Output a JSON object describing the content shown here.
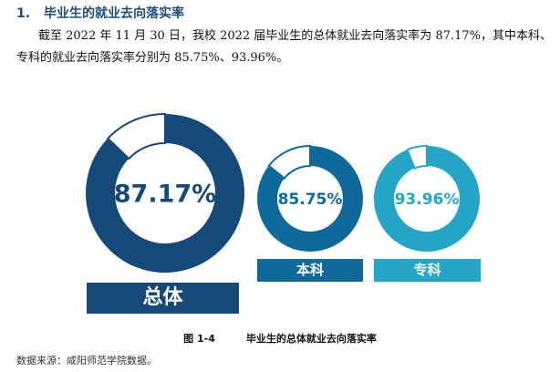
{
  "heading": {
    "number": "1.",
    "title": "毕业生的就业去向落实率"
  },
  "paragraph": "截至 2022 年 11 月 30 日，我校 2022 届毕业生的总体就业去向落实率为 87.17%，其中本科、专科的就业去向落实率分别为 85.75%、93.96%。",
  "caption": {
    "figure": "图 1-4",
    "title": "毕业生的总体就业去向落实率"
  },
  "source": "数据来源：咸阳师范学院数据。",
  "chart_data": {
    "type": "pie",
    "subtype": "donut",
    "title": "毕业生的总体就业去向落实率",
    "categories": [
      "总体",
      "本科",
      "专科"
    ],
    "values": [
      87.17,
      85.75,
      93.96
    ],
    "labels": [
      "87.17%",
      "85.75%",
      "93.96%"
    ],
    "unit": "%",
    "colors": [
      "#15497a",
      "#0f6a9b",
      "#26a6c6"
    ],
    "remainder_color": "#ffffff"
  },
  "donuts": [
    {
      "label": "总体",
      "value_text": "87.17%"
    },
    {
      "label": "本科",
      "value_text": "85.75%"
    },
    {
      "label": "专科",
      "value_text": "93.96%"
    }
  ]
}
